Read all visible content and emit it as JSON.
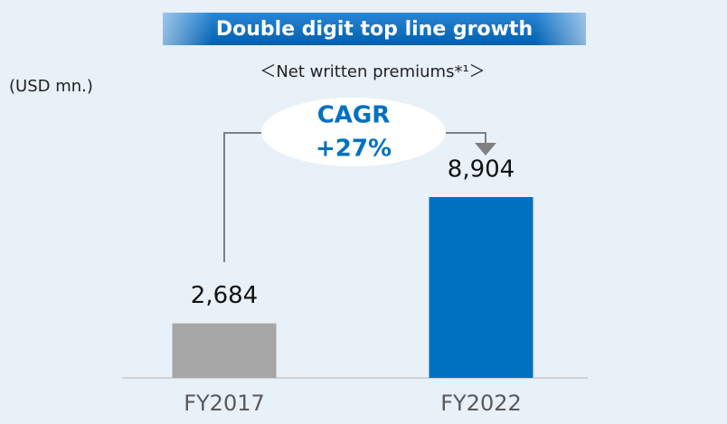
{
  "chart_data": {
    "type": "bar",
    "title": "Double digit top line growth",
    "subtitle": "＜Net written premiums*¹＞",
    "unit_label": "(USD mn.)",
    "annotation": {
      "title": "CAGR",
      "value": "+27%"
    },
    "categories": [
      "FY2017",
      "FY2022"
    ],
    "values": [
      2684,
      8904
    ],
    "value_labels": [
      "2,684",
      "8,904"
    ],
    "colors": [
      "#a6a6a6",
      "#0070c0"
    ]
  }
}
